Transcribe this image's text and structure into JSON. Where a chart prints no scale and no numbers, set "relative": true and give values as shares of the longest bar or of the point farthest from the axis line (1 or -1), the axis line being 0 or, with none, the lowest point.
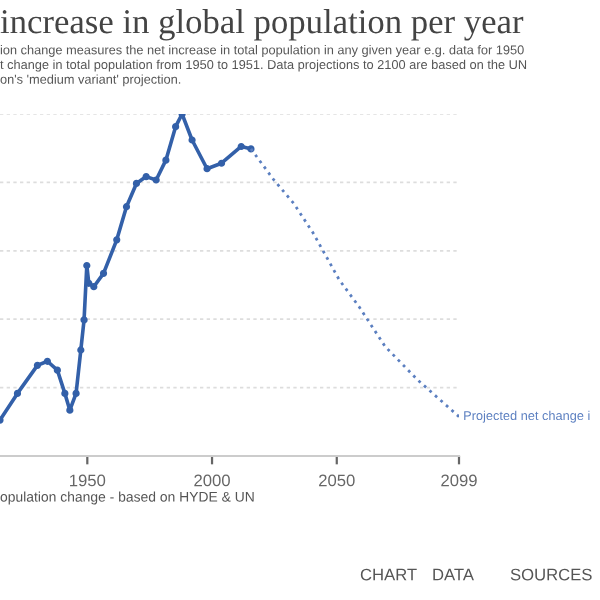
{
  "chart_data": {
    "type": "line",
    "title": "increase in global population per year",
    "subtitle": "ion change measures the net increase in total population in any given year e.g. data for 1950\nt change in total population from 1950 to 1951. Data projections to 2100 are based on the UN\non's 'medium variant' projection.",
    "relative": true,
    "xlim": [
      1915,
      2099
    ],
    "xticks": [
      1950,
      2000,
      2050,
      2099
    ],
    "grid": "y",
    "series": [
      {
        "color": "#3360a9",
        "line_style": "solid",
        "marker": "circle",
        "x": [
          1915,
          1922,
          1930,
          1934,
          1938,
          1941,
          1943,
          1945.5,
          1947.4,
          1948.7,
          1949.8,
          1950.6,
          1952.6,
          1956.5,
          1961.8,
          1965.7,
          1969.7,
          1973.6,
          1977.6,
          1981.5,
          1985.4,
          1988,
          1992,
          1998,
          2003.8,
          2011.7,
          2015.6
        ],
        "values": [
          0.105,
          0.183,
          0.265,
          0.277,
          0.251,
          0.183,
          0.134,
          0.183,
          0.31,
          0.398,
          0.557,
          0.505,
          0.495,
          0.534,
          0.632,
          0.729,
          0.797,
          0.817,
          0.807,
          0.865,
          0.963,
          1.0,
          0.924,
          0.84,
          0.856,
          0.905,
          0.898
        ]
      },
      {
        "name": "Projected net change i",
        "color": "#5b7fc0",
        "line_style": "dotted",
        "marker": "none",
        "x": [
          2015.6,
          2024.8,
          2032.7,
          2040.6,
          2051,
          2058.9,
          2069.4,
          2082.5,
          2099
        ],
        "values": [
          0.898,
          0.807,
          0.739,
          0.651,
          0.515,
          0.437,
          0.32,
          0.222,
          0.115
        ]
      }
    ],
    "annotations": [
      "opulation change - based on HYDE & UN",
      "CHART",
      "DATA",
      "SOURCES"
    ]
  }
}
